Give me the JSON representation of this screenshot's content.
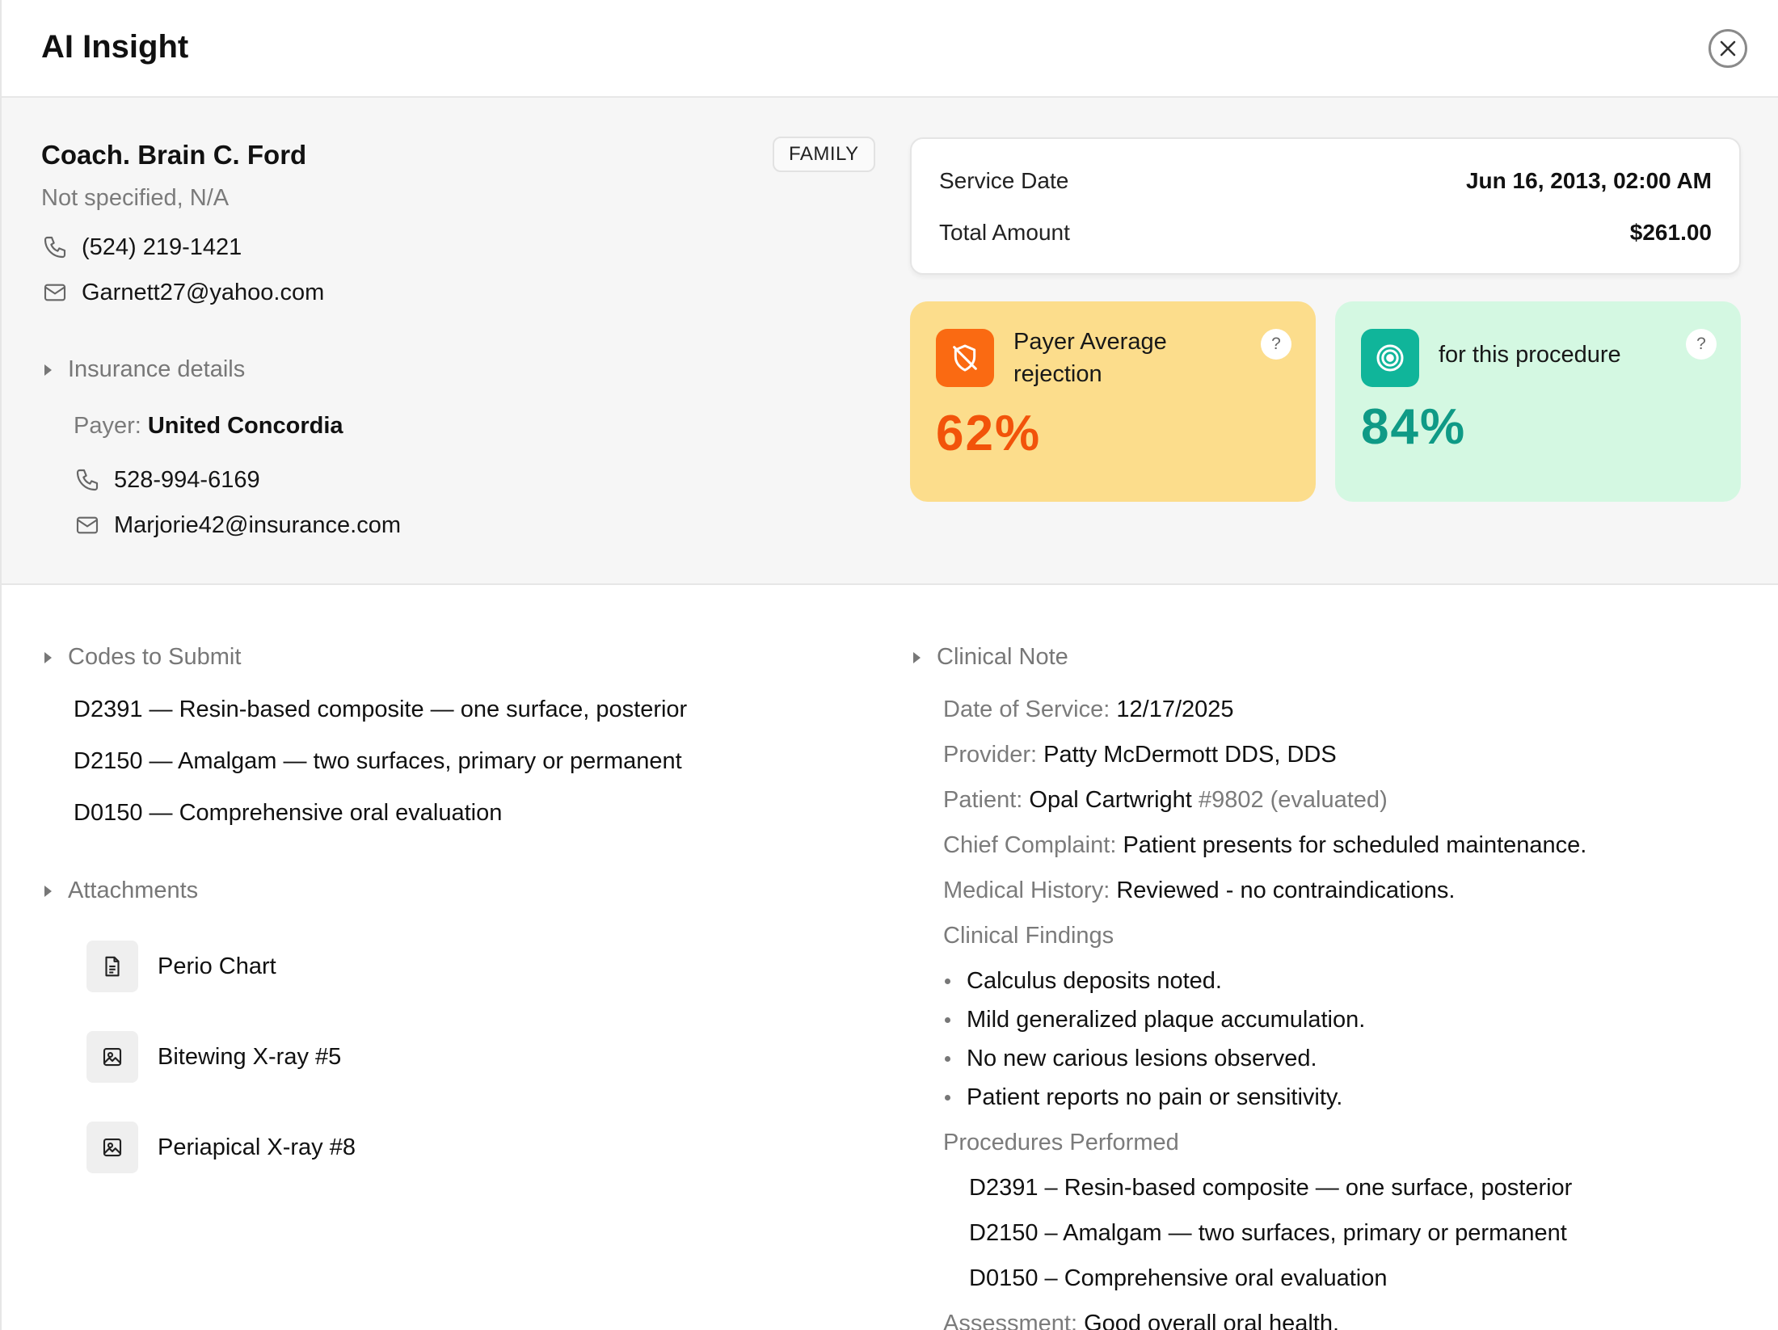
{
  "header": {
    "title": "AI Insight"
  },
  "patient": {
    "name": "Coach. Brain C. Ford",
    "subtitle": "Not specified, N/A",
    "badge": "FAMILY",
    "phone": "(524) 219-1421",
    "email": "Garnett27@yahoo.com"
  },
  "insurance": {
    "section_label": "Insurance details",
    "payer_label": "Payer:",
    "payer_name": "United Concordia",
    "phone": "528-994-6169",
    "email": "Marjorie42@insurance.com"
  },
  "service": {
    "date_label": "Service Date",
    "date_value": "Jun 16, 2013, 02:00 AM",
    "amount_label": "Total Amount",
    "amount_value": "$261.00"
  },
  "metrics": [
    {
      "label_line1": "Payer Average",
      "label_line2": "rejection",
      "value": "62%",
      "percent": 62,
      "color": "#f2530a",
      "bg": "#fcdd8c",
      "icon": "shield-off-icon",
      "help": "?"
    },
    {
      "label_line1": "for this procedure",
      "value": "84%",
      "percent": 84,
      "color": "#0f9a86",
      "bg": "#d4f8e2",
      "icon": "target-icon",
      "help": "?"
    }
  ],
  "codes": {
    "section_label": "Codes to Submit",
    "items": [
      "D2391 — Resin-based composite — one surface, posterior",
      "D2150 — Amalgam — two surfaces, primary or permanent",
      "D0150 — Comprehensive oral evaluation"
    ]
  },
  "attachments": {
    "section_label": "Attachments",
    "items": [
      {
        "name": "Perio Chart",
        "icon": "document-icon"
      },
      {
        "name": "Bitewing X-ray #5",
        "icon": "image-icon"
      },
      {
        "name": "Periapical X-ray #8",
        "icon": "image-icon"
      }
    ]
  },
  "clinical_note": {
    "section_label": "Clinical Note",
    "date_label": "Date of Service:",
    "date_value": "12/17/2025",
    "provider_label": "Provider:",
    "provider_value": "Patty McDermott DDS, DDS",
    "patient_label": "Patient:",
    "patient_value": "Opal Cartwright",
    "patient_suffix": "#9802 (evaluated)",
    "complaint_label": "Chief Complaint:",
    "complaint_value": "Patient presents for scheduled maintenance.",
    "history_label": "Medical History:",
    "history_value": "Reviewed - no contraindications.",
    "findings_label": "Clinical Findings",
    "findings": [
      "Calculus deposits noted.",
      "Mild generalized plaque accumulation.",
      "No new carious lesions observed.",
      "Patient reports no pain or sensitivity."
    ],
    "procedures_label": "Procedures Performed",
    "procedures": [
      "D2391 – Resin-based composite — one surface, posterior",
      "D2150 – Amalgam — two surfaces, primary or permanent",
      "D0150 – Comprehensive oral evaluation"
    ],
    "assessment_label": "Assessment:",
    "assessment_value": "Good overall oral health."
  }
}
